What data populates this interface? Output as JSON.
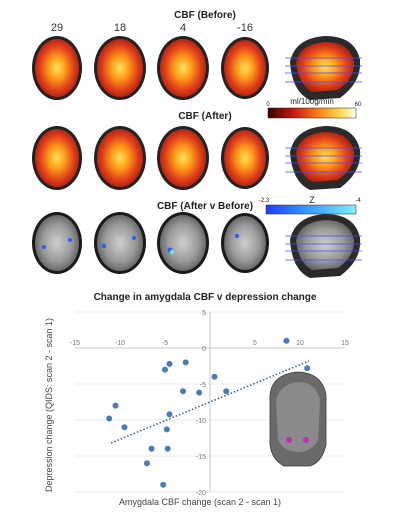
{
  "brain_figure": {
    "slice_numbers": [
      "29",
      "18",
      "4",
      "-16"
    ],
    "panels": [
      {
        "title": "CBF (Before)",
        "style": "heat"
      },
      {
        "title": "CBF (After)",
        "style": "heat"
      },
      {
        "title": "CBF (After v Before)",
        "style": "z"
      }
    ],
    "cbf_colorbar": {
      "unit": "ml/100g/min",
      "min": "0",
      "max": "60"
    },
    "z_colorbar": {
      "label": "Z",
      "min": "-2.3",
      "max": "-4"
    }
  },
  "chart_data": {
    "type": "scatter",
    "title": "Change in amygdala CBF v depression change",
    "xlabel": "Amygdala CBF change (scan 2 - scan 1)",
    "ylabel": "Depression change (QIDS: scan 2 - scan 1)",
    "xlim": [
      -15,
      15
    ],
    "ylim": [
      -20,
      5
    ],
    "x_ticks": [
      "-15",
      "-10",
      "-5",
      "0",
      "5",
      "10",
      "15"
    ],
    "y_ticks": [
      "5",
      "0",
      "-5",
      "-10",
      "-15",
      "-20"
    ],
    "grid": "horizontal",
    "trendline": {
      "style": "dotted",
      "x": [
        -11,
        11
      ],
      "y": [
        -13.2,
        -1.8
      ]
    },
    "points": [
      {
        "x": -11.2,
        "y": -9.8
      },
      {
        "x": -10.5,
        "y": -8.0
      },
      {
        "x": -9.5,
        "y": -11.0
      },
      {
        "x": -6.5,
        "y": -14.0
      },
      {
        "x": -7.0,
        "y": -16.0
      },
      {
        "x": -5.0,
        "y": -3.0
      },
      {
        "x": -4.5,
        "y": -2.2
      },
      {
        "x": -4.8,
        "y": -11.3
      },
      {
        "x": -4.7,
        "y": -14.0
      },
      {
        "x": -5.2,
        "y": -19.0
      },
      {
        "x": -2.7,
        "y": -2.0
      },
      {
        "x": -3.0,
        "y": -6.0
      },
      {
        "x": -1.2,
        "y": -6.2
      },
      {
        "x": -4.5,
        "y": -9.2
      },
      {
        "x": 0.5,
        "y": -4.0
      },
      {
        "x": 1.8,
        "y": -6.0
      },
      {
        "x": 8.5,
        "y": 1.0
      },
      {
        "x": 10.8,
        "y": -2.8
      }
    ],
    "marker_color": "#4a7ab8",
    "trend_color": "#2f5d9a"
  }
}
